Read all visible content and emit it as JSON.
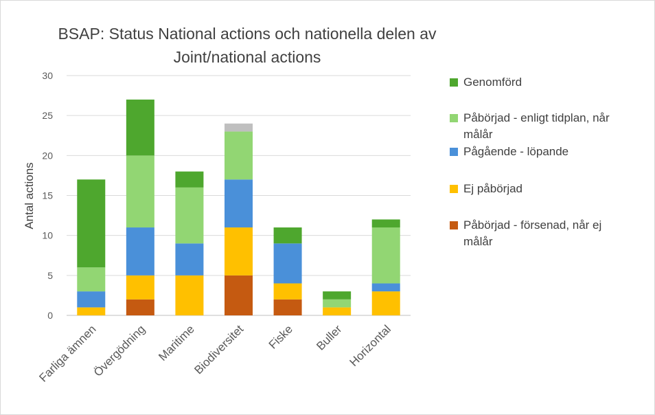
{
  "chart_data": {
    "type": "bar",
    "stacked": true,
    "title": "BSAP: Status National actions och nationella delen av Joint/national actions",
    "title_lines": [
      "BSAP: Status National actions och nationella delen av",
      "Joint/national actions"
    ],
    "ylabel": "Antal actions",
    "xlabel": "",
    "ylim": [
      0,
      30
    ],
    "yticks": [
      0,
      5,
      10,
      15,
      20,
      25,
      30
    ],
    "grid": true,
    "legend_position": "right",
    "categories": [
      "Farliga ämnen",
      "Övergödning",
      "Maritime",
      "Biodiversitet",
      "Fiske",
      "Buller",
      "Horizontal"
    ],
    "series": [
      {
        "name": "Påbörjad - försenad, når ej målår",
        "color": "#c55a11",
        "values": [
          0,
          2,
          0,
          5,
          2,
          0,
          0
        ]
      },
      {
        "name": "Ej påbörjad",
        "color": "#ffc000",
        "values": [
          1,
          3,
          5,
          6,
          2,
          1,
          3
        ]
      },
      {
        "name": "Pågående - löpande",
        "color": "#4a90d9",
        "values": [
          2,
          6,
          4,
          6,
          5,
          0,
          1
        ]
      },
      {
        "name": "Påbörjad - enligt tidplan, når målår",
        "color": "#92d673",
        "values": [
          3,
          9,
          7,
          6,
          0,
          1,
          7
        ]
      },
      {
        "name": "Genomförd",
        "color": "#4ea72e",
        "values": [
          11,
          7,
          2,
          0,
          2,
          1,
          1
        ]
      },
      {
        "name": "",
        "color": "#bfbfbf",
        "values": [
          0,
          0,
          0,
          1,
          0,
          0,
          0
        ]
      }
    ],
    "legend_order": [
      4,
      3,
      2,
      1,
      0
    ]
  }
}
